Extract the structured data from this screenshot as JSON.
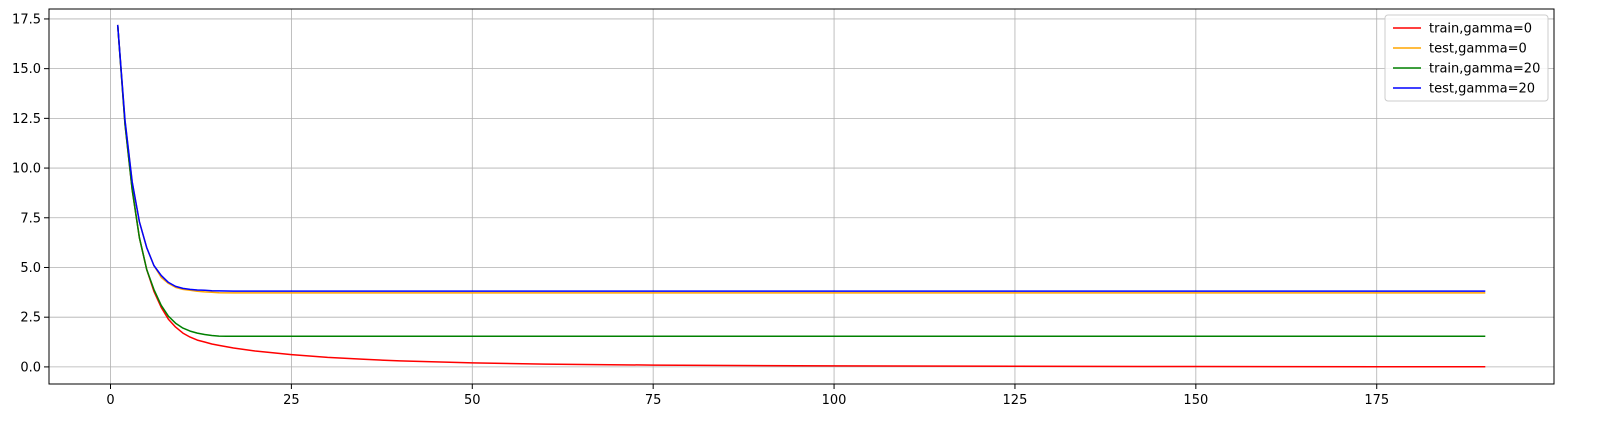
{
  "chart_data": {
    "type": "line",
    "title": "",
    "xlabel": "",
    "ylabel": "",
    "xlim": [
      -8.5,
      199.5
    ],
    "ylim": [
      -0.86,
      18.0
    ],
    "grid": true,
    "legend_position": "top-right",
    "x_ticks": [
      0,
      25,
      50,
      75,
      100,
      125,
      150,
      175
    ],
    "x_tick_labels": [
      "0",
      "25",
      "50",
      "75",
      "100",
      "125",
      "150",
      "175"
    ],
    "y_ticks": [
      0.0,
      2.5,
      5.0,
      7.5,
      10.0,
      12.5,
      15.0,
      17.5
    ],
    "y_tick_labels": [
      "0.0",
      "2.5",
      "5.0",
      "7.5",
      "10.0",
      "12.5",
      "15.0",
      "17.5"
    ],
    "series": [
      {
        "name": "train,gamma=0",
        "color": "#ff0000",
        "x": [
          1,
          2,
          3,
          4,
          5,
          6,
          7,
          8,
          9,
          10,
          11,
          12,
          13,
          14,
          15,
          17,
          20,
          25,
          30,
          35,
          40,
          50,
          60,
          75,
          100,
          125,
          150,
          175,
          190
        ],
        "y": [
          17.2,
          12.2,
          8.9,
          6.5,
          4.9,
          3.8,
          3.0,
          2.4,
          2.0,
          1.7,
          1.5,
          1.35,
          1.25,
          1.15,
          1.08,
          0.95,
          0.8,
          0.62,
          0.48,
          0.38,
          0.3,
          0.2,
          0.14,
          0.09,
          0.05,
          0.03,
          0.02,
          0.01,
          0.01
        ]
      },
      {
        "name": "test,gamma=0",
        "color": "#ffa500",
        "x": [
          1,
          2,
          3,
          4,
          5,
          6,
          7,
          8,
          9,
          10,
          11,
          12,
          13,
          14,
          15,
          17,
          20,
          25,
          50,
          100,
          150,
          190
        ],
        "y": [
          17.2,
          12.4,
          9.3,
          7.3,
          6.0,
          5.1,
          4.5,
          4.2,
          4.0,
          3.9,
          3.85,
          3.8,
          3.77,
          3.75,
          3.73,
          3.72,
          3.72,
          3.72,
          3.72,
          3.72,
          3.72,
          3.72
        ]
      },
      {
        "name": "train,gamma=20",
        "color": "#008000",
        "x": [
          1,
          2,
          3,
          4,
          5,
          6,
          7,
          8,
          9,
          10,
          11,
          12,
          13,
          14,
          15,
          16,
          20,
          50,
          100,
          150,
          190
        ],
        "y": [
          17.2,
          12.2,
          8.9,
          6.5,
          4.9,
          3.9,
          3.1,
          2.55,
          2.2,
          1.95,
          1.8,
          1.7,
          1.63,
          1.58,
          1.55,
          1.54,
          1.54,
          1.54,
          1.54,
          1.54,
          1.54
        ]
      },
      {
        "name": "test,gamma=20",
        "color": "#0000ff",
        "x": [
          1,
          2,
          3,
          4,
          5,
          6,
          7,
          8,
          9,
          10,
          11,
          12,
          13,
          14,
          15,
          17,
          20,
          25,
          50,
          100,
          150,
          190
        ],
        "y": [
          17.2,
          12.4,
          9.3,
          7.3,
          6.0,
          5.1,
          4.6,
          4.25,
          4.05,
          3.95,
          3.9,
          3.87,
          3.85,
          3.83,
          3.82,
          3.81,
          3.81,
          3.81,
          3.81,
          3.81,
          3.81,
          3.81
        ]
      }
    ]
  }
}
